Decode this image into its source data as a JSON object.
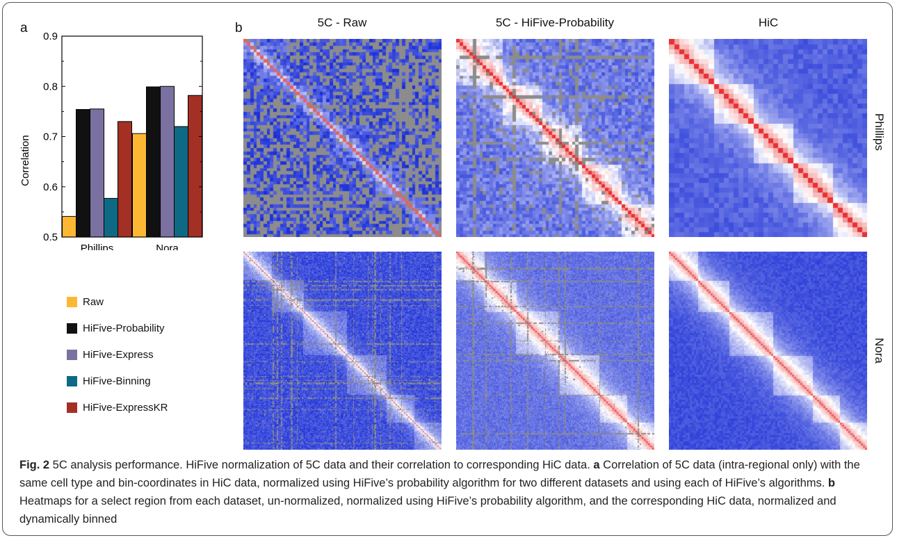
{
  "panels": {
    "a": "a",
    "b": "b"
  },
  "chart_data": {
    "type": "bar",
    "categories": [
      "Phillips",
      "Nora"
    ],
    "series": [
      {
        "name": "Raw",
        "values": [
          0.541,
          0.706
        ],
        "color": "#FDB833"
      },
      {
        "name": "HiFive-Probability",
        "values": [
          0.754,
          0.799
        ],
        "color": "#111111"
      },
      {
        "name": "HiFive-Express",
        "values": [
          0.755,
          0.8
        ],
        "color": "#7A71A0"
      },
      {
        "name": "HiFive-Binning",
        "values": [
          0.577,
          0.72
        ],
        "color": "#0E6A84"
      },
      {
        "name": "HiFive-ExpressKR",
        "values": [
          0.73,
          0.782
        ],
        "color": "#A33024"
      }
    ],
    "ylabel": "Correlation",
    "xlabel": "",
    "ylim": [
      0.5,
      0.9
    ],
    "yticks": [
      "0.5",
      "0.6",
      "0.7",
      "0.8",
      "0.9"
    ],
    "legend_position": "below"
  },
  "heatmaps": {
    "columns": [
      "5C - Raw",
      "5C - HiFive-Probability",
      "HiC"
    ],
    "rows": [
      "Phillips",
      "Nora"
    ],
    "colors": {
      "low": "#1B2FD6",
      "mid": "#FFFFFF",
      "high": "#E41A1C",
      "missing": "#8C8C8C"
    }
  },
  "caption": {
    "fig": "Fig. 2",
    "t1": " 5C analysis performance. HiFive normalization of 5C data and their correlation to corresponding HiC data. ",
    "a": "a",
    "t2": " Correlation of 5C data (intra-regional only) with the same cell type and bin-coordinates in HiC data, normalized using HiFive’s probability algorithm for two different datasets and using each of HiFive’s algorithms. ",
    "b": "b",
    "t3": " Heatmaps for a select region from each dataset, un-normalized, normalized using HiFive’s probability algorithm, and the corresponding HiC data, normalized and dynamically binned"
  }
}
